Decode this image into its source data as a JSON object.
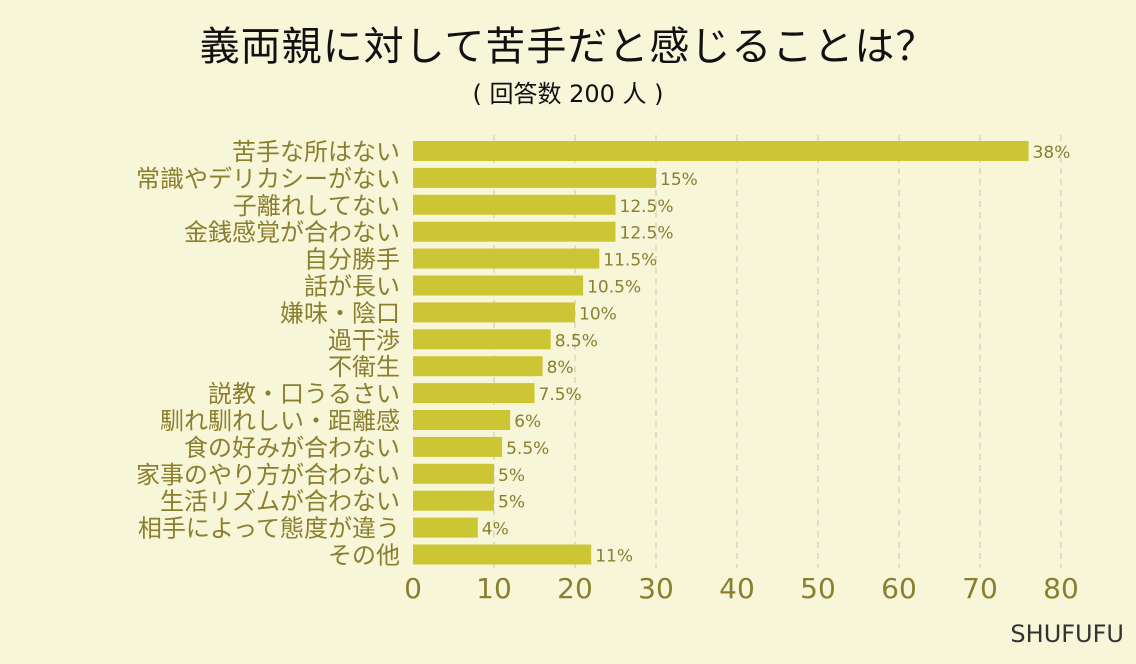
{
  "chart_data": {
    "type": "bar",
    "orientation": "horizontal",
    "title": "義両親に対して苦手だと感じることは？",
    "subtitle": "( 回答数 200 人 )",
    "categories": [
      "苦手な所はない",
      "常識やデリカシーがない",
      "子離れしてない",
      "金銭感覚が合わない",
      "自分勝手",
      "話が長い",
      "嫌味・陰口",
      "過干渉",
      "不衛生",
      "説教・口うるさい",
      "馴れ馴れしい・距離感",
      "食の好みが合わない",
      "家事のやり方が合わない",
      "生活リズムが合わない",
      "相手によって態度が違う",
      "その他"
    ],
    "values": [
      76,
      30,
      25,
      25,
      23,
      21,
      20,
      17,
      16,
      15,
      12,
      11,
      10,
      10,
      8,
      22
    ],
    "data_labels": [
      "38%",
      "15%",
      "12.5%",
      "12.5%",
      "11.5%",
      "10.5%",
      "10%",
      "8.5%",
      "8%",
      "7.5%",
      "6%",
      "5.5%",
      "5%",
      "5%",
      "4%",
      "11%"
    ],
    "xlim": [
      0,
      80
    ],
    "xticks": [
      0,
      10,
      20,
      30,
      40,
      50,
      60,
      70,
      80
    ],
    "grid": true,
    "bar_color": "#cdc634",
    "label_color": "#8a7f2e",
    "background": "#f8f6d9"
  },
  "brand": "SHUFUFU"
}
